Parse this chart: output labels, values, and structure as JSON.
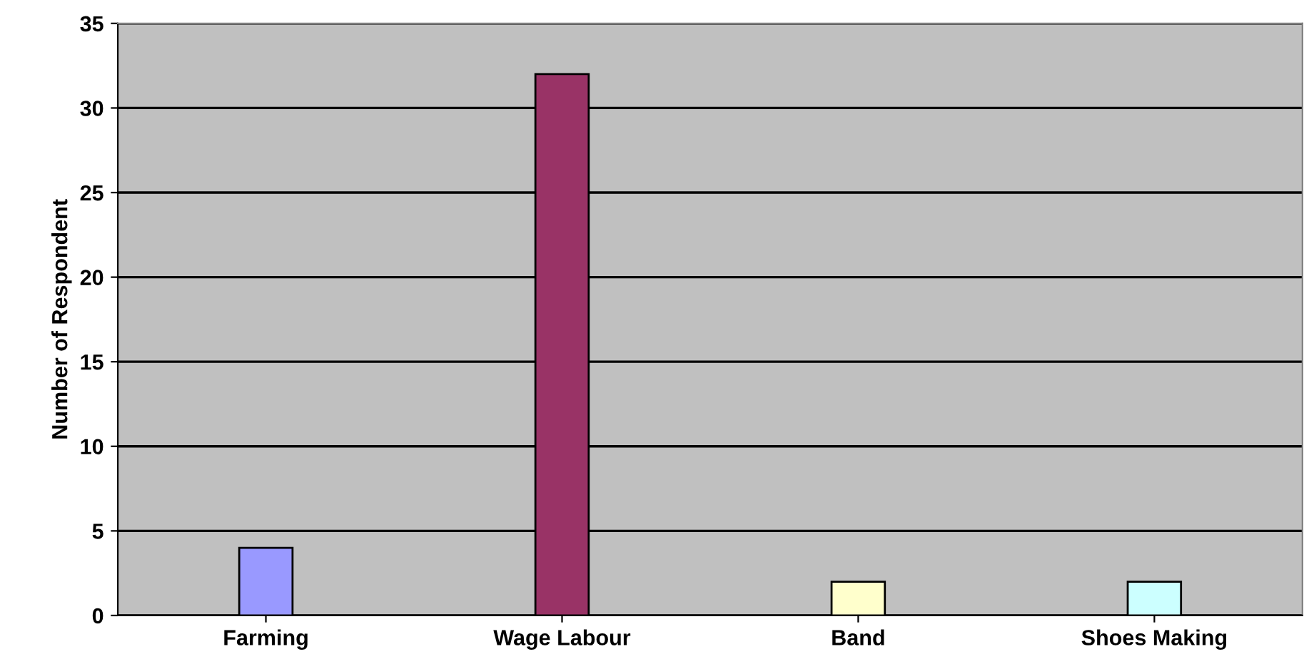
{
  "chart_data": {
    "type": "bar",
    "ylabel": "Number of Respondent",
    "categories": [
      "Farming",
      "Wage Labour",
      "Band",
      "Shoes Making"
    ],
    "values": [
      4,
      32,
      2,
      2
    ],
    "colors": [
      "#9999ff",
      "#993366",
      "#ffffcc",
      "#ccffff"
    ],
    "ylim": [
      0,
      35
    ],
    "yticks": [
      0,
      5,
      10,
      15,
      20,
      25,
      30,
      35
    ],
    "grid": "y",
    "legend": false
  }
}
